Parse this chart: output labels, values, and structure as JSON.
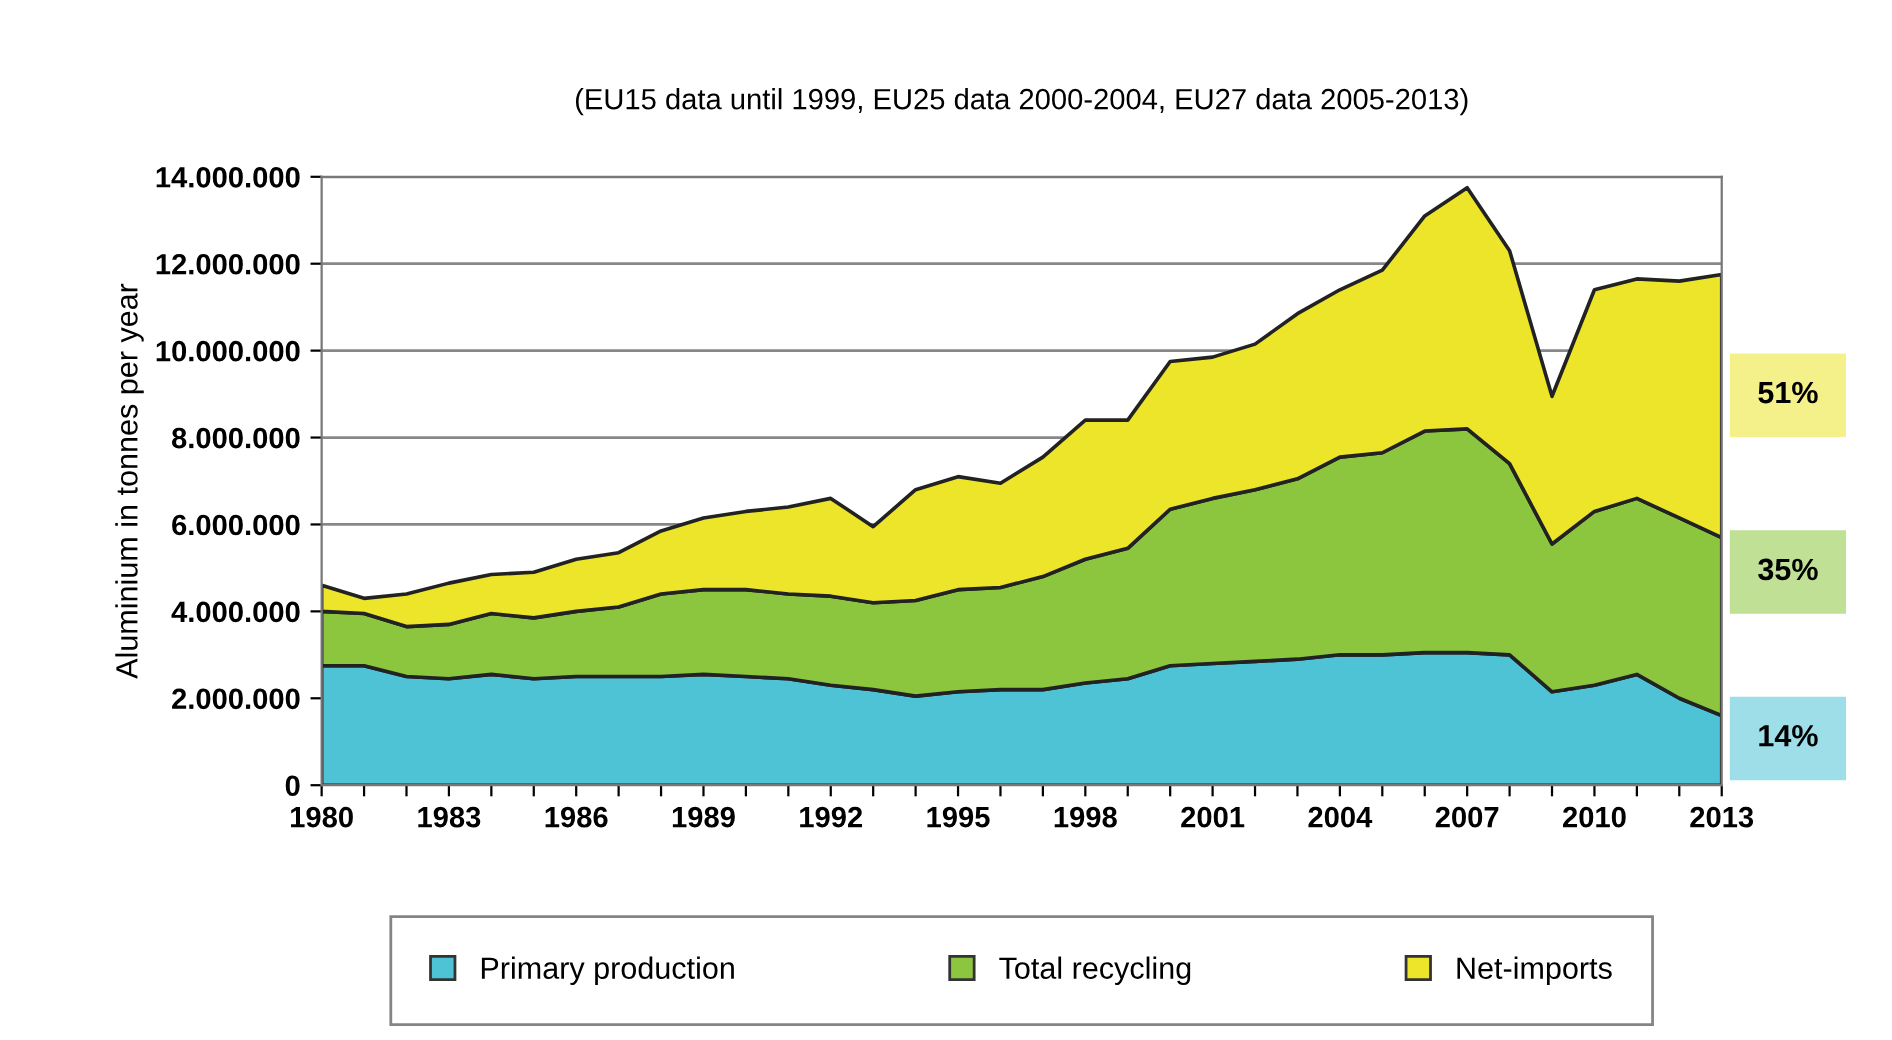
{
  "chart_data": {
    "type": "area",
    "stacked": true,
    "title": "(EU15 data until 1999, EU25 data 2000-2004, EU27 data 2005-2013)",
    "ylabel": "Aluminium in tonnes per year",
    "x": [
      1980,
      1981,
      1982,
      1983,
      1984,
      1985,
      1986,
      1987,
      1988,
      1989,
      1990,
      1991,
      1992,
      1993,
      1994,
      1995,
      1996,
      1997,
      1998,
      1999,
      2000,
      2001,
      2002,
      2003,
      2004,
      2005,
      2006,
      2007,
      2008,
      2009,
      2010,
      2011,
      2012,
      2013
    ],
    "series": [
      {
        "name": "Primary production",
        "color": "#4fc3d6",
        "values": [
          2750000,
          2750000,
          2500000,
          2450000,
          2550000,
          2450000,
          2500000,
          2500000,
          2500000,
          2550000,
          2500000,
          2450000,
          2300000,
          2200000,
          2050000,
          2150000,
          2200000,
          2200000,
          2350000,
          2450000,
          2750000,
          2800000,
          2850000,
          2900000,
          3000000,
          3000000,
          3050000,
          3050000,
          3000000,
          2150000,
          2300000,
          2550000,
          2000000,
          1600000
        ]
      },
      {
        "name": "Total recycling",
        "color": "#8cc63f",
        "values": [
          1250000,
          1200000,
          1150000,
          1250000,
          1400000,
          1400000,
          1500000,
          1600000,
          1900000,
          1950000,
          2000000,
          1950000,
          2050000,
          2000000,
          2200000,
          2350000,
          2350000,
          2600000,
          2850000,
          3000000,
          3600000,
          3800000,
          3950000,
          4150000,
          4550000,
          4650000,
          5100000,
          5150000,
          4400000,
          3400000,
          4000000,
          4050000,
          4150000,
          4100000
        ]
      },
      {
        "name": "Net-imports",
        "color": "#ede52a",
        "values": [
          600000,
          350000,
          750000,
          950000,
          900000,
          1050000,
          1200000,
          1250000,
          1450000,
          1650000,
          1800000,
          2000000,
          2250000,
          1750000,
          2550000,
          2600000,
          2400000,
          2750000,
          3200000,
          2950000,
          3400000,
          3250000,
          3350000,
          3800000,
          3850000,
          4200000,
          4950000,
          5550000,
          4900000,
          3400000,
          5100000,
          5050000,
          5450000,
          6050000
        ]
      }
    ],
    "xlim": [
      1980,
      2013
    ],
    "xticks": [
      1980,
      {
        "value": 1981,
        "label": null
      },
      {
        "value": 1982,
        "label": null
      },
      1983,
      {
        "value": 1984,
        "label": null
      },
      {
        "value": 1985,
        "label": null
      },
      1986,
      {
        "value": 1987,
        "label": null
      },
      {
        "value": 1988,
        "label": null
      },
      1989,
      {
        "value": 1990,
        "label": null
      },
      {
        "value": 1991,
        "label": null
      },
      1992,
      {
        "value": 1993,
        "label": null
      },
      {
        "value": 1994,
        "label": null
      },
      1995,
      {
        "value": 1996,
        "label": null
      },
      {
        "value": 1997,
        "label": null
      },
      1998,
      {
        "value": 1999,
        "label": null
      },
      {
        "value": 2000,
        "label": null
      },
      2001,
      {
        "value": 2002,
        "label": null
      },
      {
        "value": 2003,
        "label": null
      },
      2004,
      {
        "value": 2005,
        "label": null
      },
      {
        "value": 2006,
        "label": null
      },
      2007,
      {
        "value": 2008,
        "label": null
      },
      {
        "value": 2009,
        "label": null
      },
      2010,
      {
        "value": 2011,
        "label": null
      },
      {
        "value": 2012,
        "label": null
      },
      2013
    ],
    "ylim": [
      0,
      14000000
    ],
    "yticks": [
      0,
      {
        "value": 2000000,
        "label": "2.000.000"
      },
      {
        "value": 4000000,
        "label": "4.000.000"
      },
      {
        "value": 6000000,
        "label": "6.000.000"
      },
      {
        "value": 8000000,
        "label": "8.000.000"
      },
      {
        "value": 10000000,
        "label": "10.000.000"
      },
      {
        "value": 12000000,
        "label": "12.000.000"
      },
      {
        "value": 14000000,
        "label": "14.000.000"
      }
    ],
    "grid": "y",
    "legend": "bottom",
    "annotations": [
      "51%",
      "35%",
      "14%"
    ]
  }
}
